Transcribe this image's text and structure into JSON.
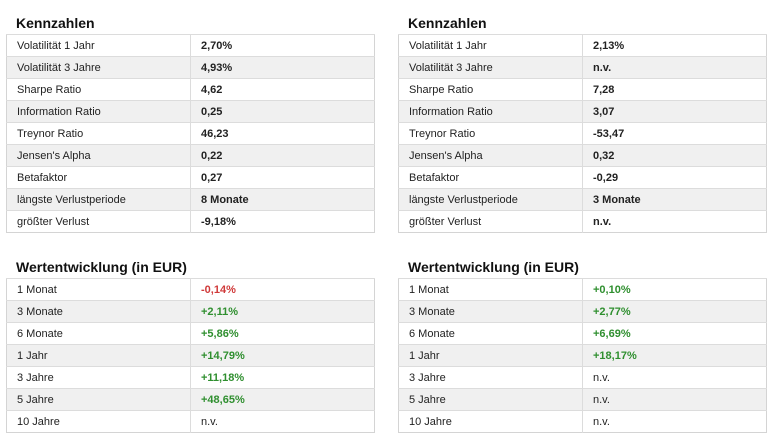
{
  "kennzahlen_left": {
    "title": "Kennzahlen",
    "rows": [
      {
        "label": "Volatilität 1 Jahr",
        "value": "2,70%"
      },
      {
        "label": "Volatilität 3 Jahre",
        "value": "4,93%"
      },
      {
        "label": "Sharpe Ratio",
        "value": "4,62"
      },
      {
        "label": "Information Ratio",
        "value": "0,25"
      },
      {
        "label": "Treynor Ratio",
        "value": "46,23"
      },
      {
        "label": "Jensen's Alpha",
        "value": "0,22"
      },
      {
        "label": "Betafaktor",
        "value": "0,27"
      },
      {
        "label": "längste Verlustperiode",
        "value": "8 Monate"
      },
      {
        "label": "größter Verlust",
        "value": "-9,18%"
      }
    ]
  },
  "kennzahlen_right": {
    "title": "Kennzahlen",
    "rows": [
      {
        "label": "Volatilität 1 Jahr",
        "value": "2,13%"
      },
      {
        "label": "Volatilität 3 Jahre",
        "value": "n.v."
      },
      {
        "label": "Sharpe Ratio",
        "value": "7,28"
      },
      {
        "label": "Information Ratio",
        "value": "3,07"
      },
      {
        "label": "Treynor Ratio",
        "value": "-53,47"
      },
      {
        "label": "Jensen's Alpha",
        "value": "0,32"
      },
      {
        "label": "Betafaktor",
        "value": "-0,29"
      },
      {
        "label": "längste Verlustperiode",
        "value": "3 Monate"
      },
      {
        "label": "größter Verlust",
        "value": "n.v."
      }
    ]
  },
  "wert_left": {
    "title": "Wertentwicklung (in EUR)",
    "rows": [
      {
        "label": "1 Monat",
        "value": "-0,14%"
      },
      {
        "label": "3 Monate",
        "value": "+2,11%"
      },
      {
        "label": "6 Monate",
        "value": "+5,86%"
      },
      {
        "label": "1 Jahr",
        "value": "+14,79%"
      },
      {
        "label": "3 Jahre",
        "value": "+11,18%"
      },
      {
        "label": "5 Jahre",
        "value": "+48,65%"
      },
      {
        "label": "10 Jahre",
        "value": "n.v."
      }
    ]
  },
  "wert_right": {
    "title": "Wertentwicklung (in EUR)",
    "rows": [
      {
        "label": "1 Monat",
        "value": "+0,10%"
      },
      {
        "label": "3 Monate",
        "value": "+2,77%"
      },
      {
        "label": "6 Monate",
        "value": "+6,69%"
      },
      {
        "label": "1 Jahr",
        "value": "+18,17%"
      },
      {
        "label": "3 Jahre",
        "value": "n.v."
      },
      {
        "label": "5 Jahre",
        "value": "n.v."
      },
      {
        "label": "10 Jahre",
        "value": "n.v."
      }
    ]
  },
  "colors": {
    "positive": "#2f8f2f",
    "negative": "#d03a3a",
    "row_alt": "#f0f0f0",
    "border": "#d4d4d4"
  }
}
